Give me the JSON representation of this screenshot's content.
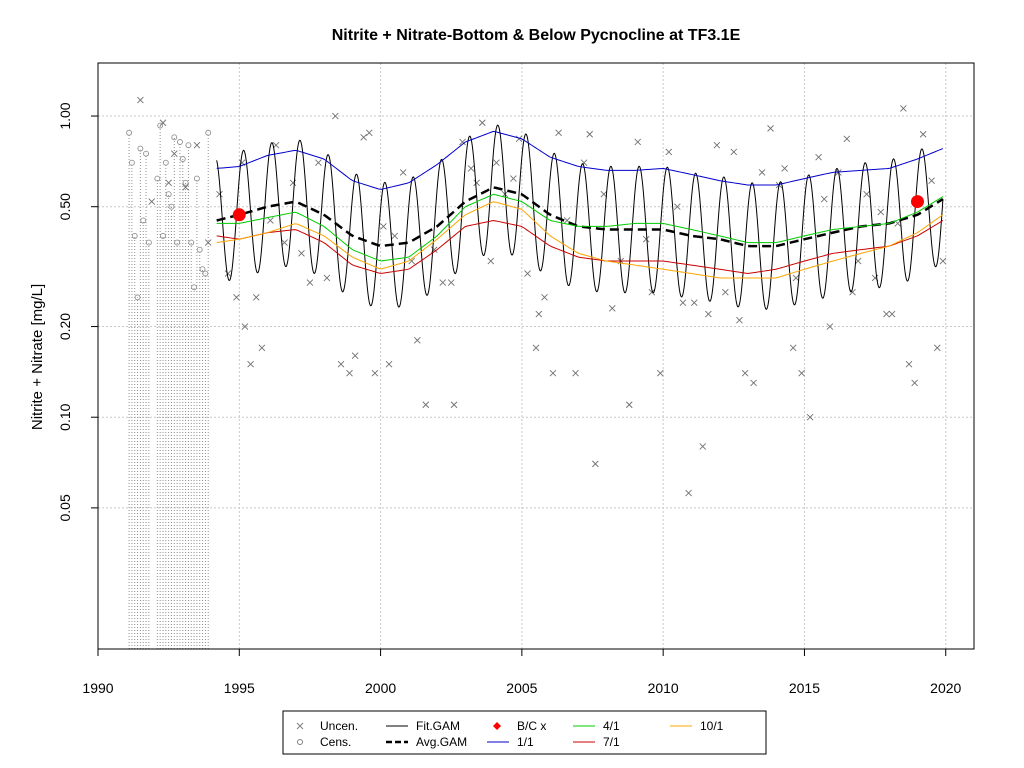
{
  "chart_data": {
    "type": "line",
    "title": "Nitrite + Nitrate-Bottom & Below Pycnocline at TF3.1E",
    "xlabel": "",
    "ylabel": "Nitrite + Nitrate [mg/L]",
    "xlim": [
      1990,
      2021
    ],
    "ylim": [
      0.017,
      1.5
    ],
    "y_scale": "log",
    "x_ticks": [
      1990,
      1995,
      2000,
      2005,
      2010,
      2015,
      2020
    ],
    "y_ticks": [
      0.05,
      0.1,
      0.2,
      0.5,
      1.0
    ],
    "y_tick_labels": [
      "0.05",
      "0.10",
      "0.20",
      "0.50",
      "1.00"
    ],
    "grid": true,
    "legend_position": "bottom",
    "legend": [
      {
        "label": "Uncen.",
        "style": "x-marker",
        "color": "#808080"
      },
      {
        "label": "Fit.GAM",
        "style": "solid-line",
        "color": "#000000"
      },
      {
        "label": "B/C x",
        "style": "diamond-marker",
        "color": "#ff0000"
      },
      {
        "label": "4/1",
        "style": "solid-line",
        "color": "#00cc00"
      },
      {
        "label": "10/1",
        "style": "solid-line",
        "color": "#ffa500"
      },
      {
        "label": "Cens.",
        "style": "circle-marker",
        "color": "#808080"
      },
      {
        "label": "Avg.GAM",
        "style": "dashed-line",
        "color": "#000000"
      },
      {
        "label": "1/1",
        "style": "solid-line",
        "color": "#0000cc"
      },
      {
        "label": "7/1",
        "style": "solid-line",
        "color": "#cc0000"
      }
    ],
    "series": [
      {
        "name": "Avg.GAM",
        "color": "#000000",
        "x": [
          1994.2,
          1995,
          1996,
          1997,
          1998,
          1999,
          2000,
          2001,
          2002,
          2003,
          2004,
          2005,
          2006,
          2007,
          2008,
          2009,
          2010,
          2011,
          2012,
          2013,
          2014,
          2015,
          2016,
          2017,
          2018,
          2019,
          2019.9
        ],
        "y": [
          0.45,
          0.47,
          0.5,
          0.52,
          0.47,
          0.4,
          0.37,
          0.38,
          0.43,
          0.52,
          0.58,
          0.55,
          0.47,
          0.43,
          0.42,
          0.42,
          0.42,
          0.4,
          0.39,
          0.37,
          0.37,
          0.39,
          0.41,
          0.43,
          0.44,
          0.47,
          0.53
        ]
      },
      {
        "name": "1/1",
        "color": "#0000cc",
        "x": [
          1994.2,
          1995,
          1996,
          1997,
          1998,
          1999,
          2000,
          2001,
          2002,
          2003,
          2004,
          2005,
          2006,
          2007,
          2008,
          2009,
          2010,
          2011,
          2012,
          2013,
          2014,
          2015,
          2016,
          2017,
          2018,
          2019,
          2019.9
        ],
        "y": [
          0.67,
          0.68,
          0.74,
          0.77,
          0.72,
          0.61,
          0.57,
          0.6,
          0.69,
          0.82,
          0.89,
          0.84,
          0.73,
          0.68,
          0.66,
          0.66,
          0.67,
          0.64,
          0.61,
          0.59,
          0.59,
          0.62,
          0.65,
          0.66,
          0.67,
          0.72,
          0.78
        ]
      },
      {
        "name": "4/1",
        "color": "#00cc00",
        "x": [
          1994.2,
          1995,
          1996,
          1997,
          1998,
          1999,
          2000,
          2001,
          2002,
          2003,
          2004,
          2005,
          2006,
          2007,
          2008,
          2009,
          2010,
          2011,
          2012,
          2013,
          2014,
          2015,
          2016,
          2017,
          2018,
          2019,
          2019.9
        ],
        "y": [
          0.44,
          0.44,
          0.46,
          0.48,
          0.43,
          0.36,
          0.33,
          0.34,
          0.4,
          0.5,
          0.55,
          0.52,
          0.45,
          0.43,
          0.43,
          0.44,
          0.44,
          0.42,
          0.4,
          0.38,
          0.38,
          0.4,
          0.42,
          0.43,
          0.44,
          0.48,
          0.54
        ]
      },
      {
        "name": "7/1",
        "color": "#cc0000",
        "x": [
          1994.2,
          1995,
          1996,
          1997,
          1998,
          1999,
          2000,
          2001,
          2002,
          2003,
          2004,
          2005,
          2006,
          2007,
          2008,
          2009,
          2010,
          2011,
          2012,
          2013,
          2014,
          2015,
          2016,
          2017,
          2018,
          2019,
          2019.9
        ],
        "y": [
          0.4,
          0.39,
          0.41,
          0.42,
          0.38,
          0.32,
          0.3,
          0.31,
          0.36,
          0.43,
          0.45,
          0.43,
          0.37,
          0.34,
          0.33,
          0.33,
          0.33,
          0.32,
          0.31,
          0.3,
          0.31,
          0.33,
          0.35,
          0.36,
          0.37,
          0.4,
          0.45
        ]
      },
      {
        "name": "10/1",
        "color": "#ffa500",
        "x": [
          1994.2,
          1995,
          1996,
          1997,
          1998,
          1999,
          2000,
          2001,
          2002,
          2003,
          2004,
          2005,
          2006,
          2007,
          2008,
          2009,
          2010,
          2011,
          2012,
          2013,
          2014,
          2015,
          2016,
          2017,
          2018,
          2019,
          2019.9
        ],
        "y": [
          0.38,
          0.39,
          0.41,
          0.44,
          0.4,
          0.34,
          0.31,
          0.33,
          0.39,
          0.47,
          0.52,
          0.49,
          0.4,
          0.35,
          0.33,
          0.32,
          0.31,
          0.3,
          0.29,
          0.29,
          0.29,
          0.31,
          0.33,
          0.35,
          0.37,
          0.41,
          0.47
        ]
      }
    ],
    "fit_gam": {
      "name": "Fit.GAM",
      "color": "#000000",
      "x_start": 1994.2,
      "x_end": 2019.9,
      "seasonal_amplitude_log10": 0.21,
      "peak_phase_year_fraction": 0.15
    },
    "bc_points": [
      {
        "x": 1995.0,
        "y": 0.47
      },
      {
        "x": 2019.0,
        "y": 0.52
      }
    ],
    "uncensored_points": {
      "x": [
        1991.5,
        1991.9,
        1992.3,
        1992.5,
        1992.7,
        1993.1,
        1993.5,
        1993.9,
        1994.3,
        1994.6,
        1994.9,
        1995.1,
        1995.2,
        1995.4,
        1995.6,
        1995.8,
        1996.1,
        1996.3,
        1996.6,
        1996.9,
        1997.2,
        1997.5,
        1997.8,
        1998.1,
        1998.4,
        1998.6,
        1998.9,
        1999.1,
        1999.4,
        1999.6,
        1999.8,
        2000.1,
        2000.3,
        2000.5,
        2000.8,
        2001.1,
        2001.3,
        2001.6,
        2001.9,
        2002.2,
        2002.5,
        2002.6,
        2002.9,
        2003.2,
        2003.4,
        2003.6,
        2003.9,
        2004.1,
        2004.4,
        2004.7,
        2004.9,
        2005.2,
        2005.5,
        2005.6,
        2005.8,
        2006.1,
        2006.3,
        2006.6,
        2006.9,
        2007.2,
        2007.4,
        2007.6,
        2007.9,
        2008.2,
        2008.5,
        2008.8,
        2009.1,
        2009.4,
        2009.6,
        2009.9,
        2010.2,
        2010.5,
        2010.7,
        2010.9,
        2011.1,
        2011.4,
        2011.6,
        2011.9,
        2012.2,
        2012.5,
        2012.7,
        2012.9,
        2013.2,
        2013.5,
        2013.8,
        2014.1,
        2014.3,
        2014.6,
        2014.7,
        2014.9,
        2015.2,
        2015.5,
        2015.7,
        2015.9,
        2016.2,
        2016.5,
        2016.7,
        2016.9,
        2017.2,
        2017.5,
        2017.7,
        2017.9,
        2018.1,
        2018.3,
        2018.5,
        2018.7,
        2018.9,
        2019.2,
        2019.5,
        2019.7,
        2019.9
      ],
      "y": [
        1.13,
        0.52,
        0.95,
        0.6,
        0.75,
        0.58,
        0.8,
        0.38,
        0.55,
        0.3,
        0.25,
        0.7,
        0.2,
        0.15,
        0.25,
        0.17,
        0.45,
        0.8,
        0.38,
        0.6,
        0.35,
        0.28,
        0.7,
        0.29,
        1.0,
        0.15,
        0.14,
        0.16,
        0.85,
        0.88,
        0.14,
        0.43,
        0.15,
        0.4,
        0.65,
        0.33,
        0.18,
        0.11,
        0.36,
        0.28,
        0.28,
        0.11,
        0.82,
        0.67,
        0.6,
        0.95,
        0.33,
        0.7,
        0.55,
        0.62,
        0.84,
        0.3,
        0.17,
        0.22,
        0.25,
        0.14,
        0.88,
        0.45,
        0.14,
        0.7,
        0.87,
        0.07,
        0.55,
        0.23,
        0.33,
        0.11,
        0.82,
        0.39,
        0.26,
        0.14,
        0.76,
        0.5,
        0.24,
        0.056,
        0.24,
        0.08,
        0.22,
        0.8,
        0.26,
        0.76,
        0.21,
        0.14,
        0.13,
        0.65,
        0.91,
        0.59,
        0.67,
        0.17,
        0.29,
        0.14,
        0.1,
        0.73,
        0.53,
        0.2,
        0.65,
        0.84,
        0.26,
        0.33,
        0.55,
        0.29,
        0.48,
        0.22,
        0.22,
        0.44,
        1.06,
        0.15,
        0.13,
        0.87,
        0.61,
        0.17,
        0.33
      ]
    },
    "censored_points": {
      "x": [
        1991.1,
        1991.2,
        1991.3,
        1991.4,
        1991.5,
        1991.6,
        1991.7,
        1991.8,
        1992.1,
        1992.2,
        1992.3,
        1992.4,
        1992.5,
        1992.6,
        1992.7,
        1992.8,
        1992.9,
        1993.0,
        1993.1,
        1993.2,
        1993.3,
        1993.4,
        1993.5,
        1993.6,
        1993.7,
        1993.8,
        1993.9
      ],
      "y": [
        0.88,
        0.7,
        0.4,
        0.25,
        0.78,
        0.45,
        0.75,
        0.38,
        0.62,
        0.93,
        0.4,
        0.7,
        0.55,
        0.5,
        0.85,
        0.38,
        0.82,
        0.72,
        0.6,
        0.8,
        0.38,
        0.27,
        0.62,
        0.36,
        0.31,
        0.3,
        0.88
      ]
    }
  }
}
